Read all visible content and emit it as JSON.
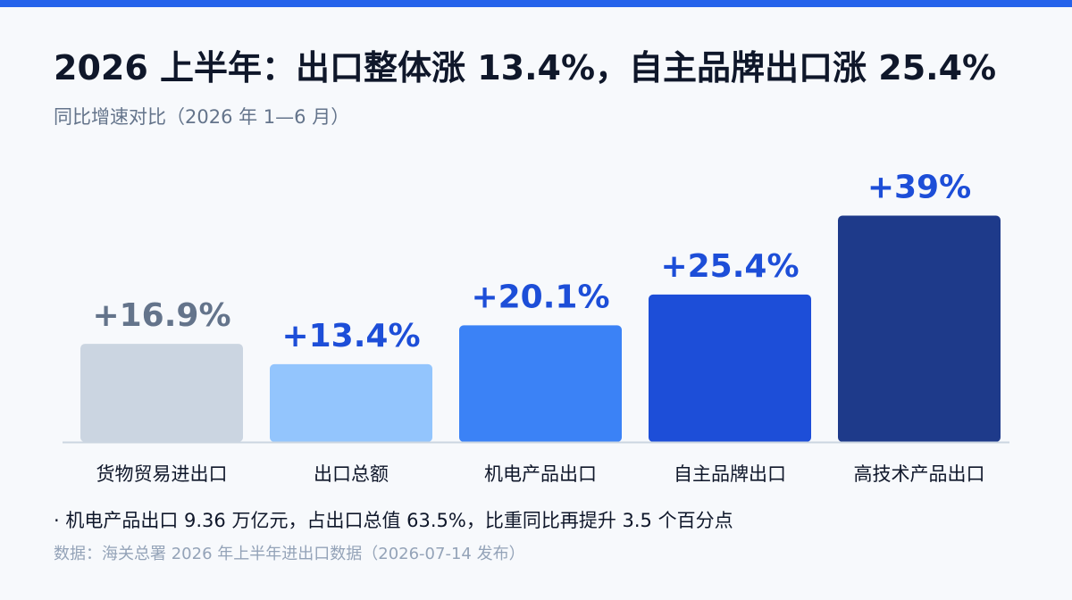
{
  "header": {
    "title": "2026 上半年：出口整体涨 13.4%，自主品牌出口涨 25.4%",
    "subtitle": "同比增速对比（2026 年 1—6 月）"
  },
  "footer": {
    "note": "· 机电产品出口 9.36 万亿元，占出口总值 63.5%，比重同比再提升 3.5 个百分点",
    "source": "数据：海关总署 2026 年上半年进出口数据（2026-07-14 发布）"
  },
  "colors": {
    "accent_bar": "#2563eb",
    "bars": [
      "#cbd5e1",
      "#93c5fd",
      "#3b82f6",
      "#1d4ed8",
      "#1e3a8a"
    ],
    "value_labels": [
      "#64748b",
      "#1d4ed8",
      "#1d4ed8",
      "#1d4ed8",
      "#1d4ed8"
    ]
  },
  "chart_data": {
    "type": "bar",
    "categories": [
      "货物贸易进出口",
      "出口总额",
      "机电产品出口",
      "自主品牌出口",
      "高技术产品出口"
    ],
    "values": [
      16.9,
      13.4,
      20.1,
      25.4,
      39
    ],
    "value_labels": [
      "+16.9%",
      "+13.4%",
      "+20.1%",
      "+25.4%",
      "+39%"
    ],
    "unit": "%",
    "title": "2026 上半年：出口整体涨 13.4%，自主品牌出口涨 25.4%",
    "subtitle": "同比增速对比（2026 年 1—6 月）",
    "xlabel": "",
    "ylabel": "",
    "grid": false,
    "legend": "none"
  }
}
